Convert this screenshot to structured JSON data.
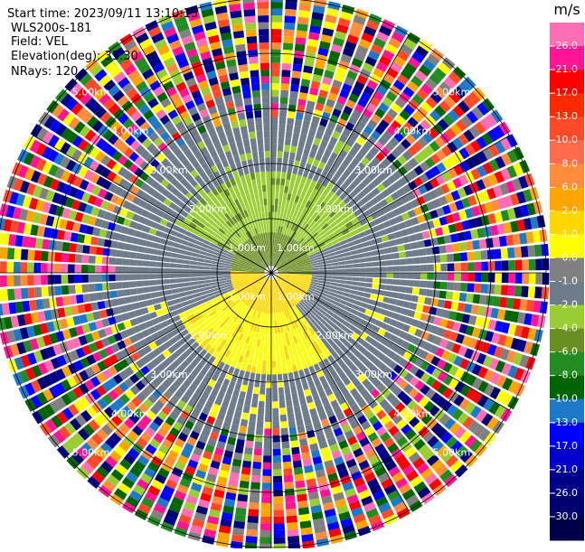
{
  "header": {
    "start_time": "Start time: 2023/09/11 13:10:15",
    "instrument": "WLS200s-181",
    "field": "Field: VEL",
    "elevation": "Elevation(deg): 35.30",
    "nrays": "NRays: 120"
  },
  "range_rings": [
    "1.00km",
    "2.00km",
    "3.00km",
    "4.00km",
    "5.00km"
  ],
  "colorbar": {
    "unit": "m/s",
    "ticks": [
      "26.0",
      "21.0",
      "17.0",
      "13.0",
      "10.0",
      "8.0",
      "6.0",
      "2.0",
      "1.0",
      "0.0",
      "-1.0",
      "-2.0",
      "-4.0",
      "-6.0",
      "-8.0",
      "-10.0",
      "-13.0",
      "-17.0",
      "-21.0",
      "-26.0",
      "-30.0"
    ],
    "colors": [
      "#ff6eb4",
      "#ff1493",
      "#ff0000",
      "#ff2a00",
      "#ff4a2a",
      "#ff6a4a",
      "#ff8c3a",
      "#ffa500",
      "#ffd700",
      "#ffff00",
      "#808080",
      "#6e7b8b",
      "#9acd32",
      "#6b8e23",
      "#228b22",
      "#006400",
      "#1e78c8",
      "#0000ff",
      "#0000cd",
      "#00008b",
      "#000070",
      "#000048"
    ]
  }
}
